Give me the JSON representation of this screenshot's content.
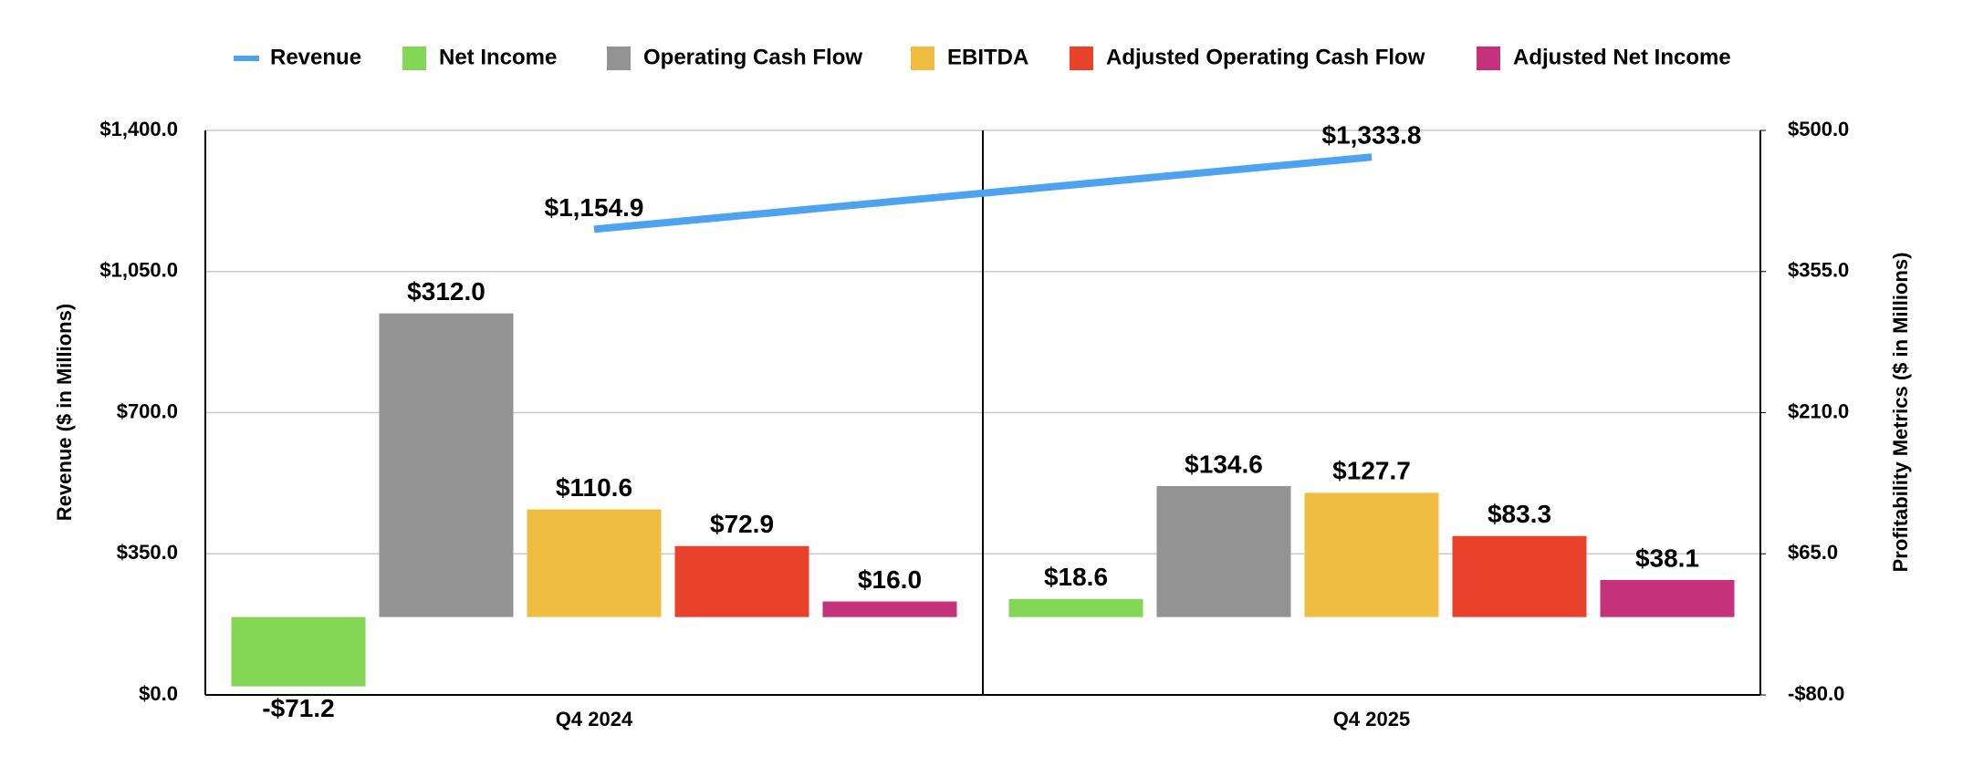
{
  "chart_data": {
    "type": "bar",
    "categories": [
      "Q4 2024",
      "Q4 2025"
    ],
    "ylabel": "Revenue ($ in Millions)",
    "y2label": "Profitability Metrics ($ in Millions)",
    "ylim": [
      0,
      1400
    ],
    "yticks": [
      {
        "value": 0,
        "label": "$0.0"
      },
      {
        "value": 350,
        "label": "$350.0"
      },
      {
        "value": 700,
        "label": "$700.0"
      },
      {
        "value": 1050,
        "label": "$1,050.0"
      },
      {
        "value": 1400,
        "label": "$1,400.0"
      }
    ],
    "y2lim": [
      -80,
      500
    ],
    "y2ticks": [
      {
        "value": -80,
        "label": "-$80.0"
      },
      {
        "value": 65,
        "label": "$65.0"
      },
      {
        "value": 210,
        "label": "$210.0"
      },
      {
        "value": 355,
        "label": "$355.0"
      },
      {
        "value": 500,
        "label": "$500.0"
      }
    ],
    "grid": true,
    "legend": "top",
    "series": [
      {
        "name": "Revenue",
        "type": "line",
        "color": "#4da3f0",
        "values": [
          1154.9,
          1333.8
        ],
        "value_labels": [
          "$1,154.9",
          "$1,333.8"
        ]
      },
      {
        "name": "Net Income",
        "axis": "y2",
        "color": "#84d755",
        "values": [
          -71.2,
          18.6
        ],
        "value_labels": [
          "-$71.2",
          "$18.6"
        ]
      },
      {
        "name": "Operating Cash Flow",
        "axis": "y2",
        "color": "#939393",
        "values": [
          312.0,
          134.6
        ],
        "value_labels": [
          "$312.0",
          "$134.6"
        ]
      },
      {
        "name": "EBITDA",
        "axis": "y2",
        "color": "#efbd42",
        "values": [
          110.6,
          127.7
        ],
        "value_labels": [
          "$110.6",
          "$127.7"
        ]
      },
      {
        "name": "Adjusted Operating Cash Flow",
        "axis": "y2",
        "color": "#e8432a",
        "values": [
          72.9,
          83.3
        ],
        "value_labels": [
          "$72.9",
          "$83.3"
        ]
      },
      {
        "name": "Adjusted Net Income",
        "axis": "y2",
        "color": "#c5317a",
        "values": [
          16.0,
          38.1
        ],
        "value_labels": [
          "$16.0",
          "$38.1"
        ]
      }
    ]
  }
}
